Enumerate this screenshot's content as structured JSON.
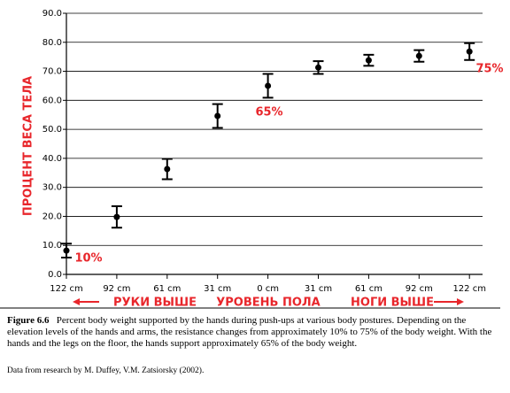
{
  "chart_data": {
    "type": "errorbar",
    "categories": [
      "122 cm",
      "92 cm",
      "61 cm",
      "31 cm",
      "0 cm",
      "31 cm",
      "61 cm",
      "92 cm",
      "122 cm"
    ],
    "series": [
      {
        "color": "#000000",
        "values": [
          8.2,
          19.8,
          36.3,
          54.6,
          65,
          71.3,
          73.8,
          75.3,
          76.8
        ],
        "errors": [
          2.4,
          3.7,
          3.5,
          4.1,
          4.1,
          2.2,
          1.9,
          2,
          2.9
        ]
      }
    ],
    "ylabel": "ПРОЦЕНТ ВЕСА ТЕЛА",
    "ylim": [
      0,
      90
    ],
    "yticks": [
      {
        "value": 0,
        "label": "0.0"
      },
      {
        "value": 10,
        "label": "10.0"
      },
      {
        "value": 20,
        "label": "20.0"
      },
      {
        "value": 30,
        "label": "30.0"
      },
      {
        "value": 40,
        "label": "40.0"
      },
      {
        "value": 50,
        "label": "50.0"
      },
      {
        "value": 60,
        "label": "60.0"
      },
      {
        "value": 70,
        "label": "70.0"
      },
      {
        "value": 80,
        "label": "80.0"
      },
      {
        "value": 90,
        "label": "90.0"
      }
    ],
    "grid": true,
    "annotations": [
      "10%",
      "65%",
      "75%"
    ],
    "group_labels": [
      "РУКИ ВЫШЕ",
      "УРОВЕНЬ ПОЛА",
      "НОГИ ВЫШЕ"
    ],
    "annotation_color": "#e8262b"
  },
  "caption": {
    "label": "Figure 6.6",
    "text": "Percent body weight supported by the hands during push-ups at various body postures. Depending on the elevation levels of the hands and arms, the resistance changes from approximately 10% to 75% of the body weight. With the hands and the legs on the floor, the hands support approximately 65% of the body weight.",
    "source": "Data from research by M. Duffey, V.M. Zatsiorsky (2002)."
  }
}
